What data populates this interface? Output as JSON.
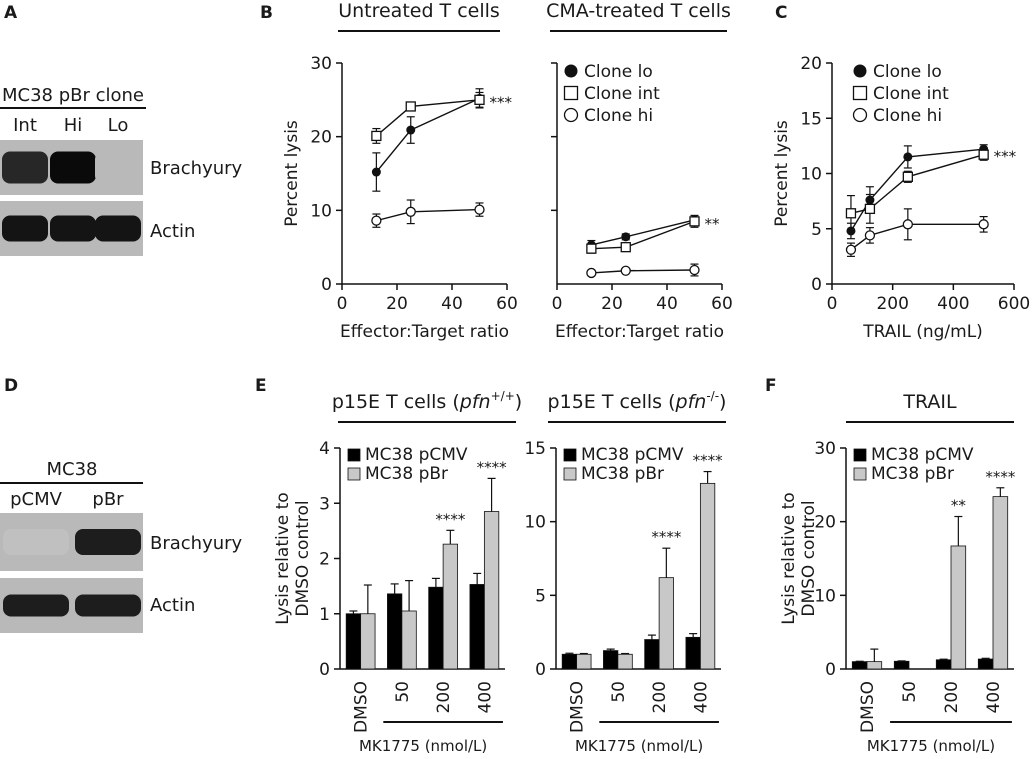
{
  "panels": {
    "A": {
      "letter": "A",
      "header": "MC38 pBr clone",
      "lanes": [
        "Int",
        "Hi",
        "Lo"
      ],
      "band_labels": [
        "Brachyury",
        "Actin"
      ],
      "brachyury_intensity": [
        0.85,
        1.0,
        0.08
      ],
      "actin_intensity": [
        0.95,
        0.95,
        0.95
      ]
    },
    "B": {
      "letter": "B"
    },
    "C": {
      "letter": "C"
    },
    "D": {
      "letter": "D",
      "header": "MC38",
      "lanes": [
        "pCMV",
        "pBr"
      ],
      "band_labels": [
        "Brachyury",
        "Actin"
      ],
      "brachyury_intensity": [
        0.04,
        0.9
      ],
      "actin_intensity": [
        0.9,
        0.9
      ]
    },
    "E": {
      "letter": "E",
      "xlabel": "MK1775 (nmol/L)"
    },
    "F": {
      "letter": "F",
      "xlabel": "MK1775 (nmol/L)"
    }
  },
  "chart_data": [
    {
      "id": "B1",
      "type": "line",
      "title": "Untreated T cells",
      "xlabel": "Effector:Target ratio",
      "ylabel": "Percent lysis",
      "xlim": [
        0,
        60
      ],
      "ylim": [
        0,
        30
      ],
      "xticks": [
        0,
        20,
        40,
        60
      ],
      "yticks": [
        0,
        10,
        20,
        30
      ],
      "x": [
        12.5,
        25,
        50
      ],
      "series": [
        {
          "name": "Clone lo",
          "marker": "filled-circle",
          "values": [
            15.2,
            20.9,
            25.2
          ],
          "errors": [
            2.6,
            1.8,
            1.3
          ]
        },
        {
          "name": "Clone int",
          "marker": "open-square",
          "values": [
            20.1,
            24.1,
            25.0
          ],
          "errors": [
            1.0,
            0.5,
            1.0
          ]
        },
        {
          "name": "Clone hi",
          "marker": "open-circle",
          "values": [
            8.6,
            9.8,
            10.1
          ],
          "errors": [
            0.9,
            1.6,
            0.9
          ]
        }
      ],
      "annotations": [
        {
          "text": "***",
          "x": 50,
          "y": 25.2
        }
      ]
    },
    {
      "id": "B2",
      "type": "line",
      "title": "CMA-treated T cells",
      "xlabel": "Effector:Target ratio",
      "ylabel": "",
      "xlim": [
        0,
        60
      ],
      "ylim": [
        0,
        30
      ],
      "xticks": [
        0,
        20,
        40,
        60
      ],
      "x": [
        12.5,
        25,
        50
      ],
      "legend": [
        "Clone lo",
        "Clone int",
        "Clone hi"
      ],
      "series": [
        {
          "name": "Clone lo",
          "marker": "filled-circle",
          "values": [
            5.3,
            6.4,
            8.7
          ],
          "errors": [
            0.6,
            0.4,
            0.6
          ]
        },
        {
          "name": "Clone int",
          "marker": "open-square",
          "values": [
            4.8,
            5.0,
            8.5
          ],
          "errors": [
            0.6,
            0.5,
            0.8
          ]
        },
        {
          "name": "Clone hi",
          "marker": "open-circle",
          "values": [
            1.5,
            1.8,
            1.9
          ],
          "errors": [
            0.3,
            0.3,
            0.8
          ]
        }
      ],
      "annotations": [
        {
          "text": "**",
          "x": 50,
          "y": 8.7
        }
      ]
    },
    {
      "id": "C",
      "type": "line",
      "title": "",
      "xlabel": "TRAIL (ng/mL)",
      "ylabel": "Percent lysis",
      "xlim": [
        0,
        600
      ],
      "ylim": [
        0,
        20
      ],
      "xticks": [
        0,
        200,
        400,
        600
      ],
      "yticks": [
        0,
        5,
        10,
        15,
        20
      ],
      "x": [
        62.5,
        125,
        250,
        500
      ],
      "legend": [
        "Clone lo",
        "Clone int",
        "Clone hi"
      ],
      "series": [
        {
          "name": "Clone lo",
          "marker": "filled-circle",
          "values": [
            4.8,
            7.6,
            11.5,
            12.2
          ],
          "errors": [
            0.7,
            1.2,
            1.0,
            0.4
          ]
        },
        {
          "name": "Clone int",
          "marker": "open-square",
          "values": [
            6.4,
            6.8,
            9.7,
            11.7
          ],
          "errors": [
            1.6,
            1.3,
            0.5,
            0.5
          ]
        },
        {
          "name": "Clone hi",
          "marker": "open-circle",
          "values": [
            3.1,
            4.4,
            5.4,
            5.4
          ],
          "errors": [
            0.6,
            0.7,
            1.4,
            0.7
          ]
        }
      ],
      "annotations": [
        {
          "text": "***",
          "x": 500,
          "y": 11.9
        }
      ]
    },
    {
      "id": "E1",
      "type": "bar",
      "title": "p15E T cells (pfn+/+)",
      "title_parts": {
        "prefix": "p15E T cells (",
        "italic": "pfn",
        "sup": "+/+",
        "suffix": ")"
      },
      "ylabel_lines": [
        "Lysis relative to",
        "DMSO control"
      ],
      "categories": [
        "DMSO",
        "50",
        "200",
        "400"
      ],
      "ylim": [
        0,
        4
      ],
      "yticks": [
        0,
        1,
        2,
        3,
        4
      ],
      "series": [
        {
          "name": "MC38 pCMV",
          "color": "#000000",
          "values": [
            1.0,
            1.36,
            1.48,
            1.53
          ],
          "errors": [
            0.05,
            0.18,
            0.16,
            0.2
          ]
        },
        {
          "name": "MC38 pBr",
          "color": "#c8c8c8",
          "values": [
            1.0,
            1.05,
            2.26,
            2.85
          ],
          "errors": [
            0.52,
            0.55,
            0.25,
            0.6
          ]
        }
      ],
      "annotations": [
        {
          "text": "****",
          "category": "200"
        },
        {
          "text": "****",
          "category": "400"
        }
      ]
    },
    {
      "id": "E2",
      "type": "bar",
      "title": "p15E T cells (pfn-/-)",
      "title_parts": {
        "prefix": "p15E T cells (",
        "italic": "pfn",
        "sup": "-/-",
        "suffix": ")"
      },
      "categories": [
        "DMSO",
        "50",
        "200",
        "400"
      ],
      "ylim": [
        0,
        15
      ],
      "yticks": [
        0,
        5,
        10,
        15
      ],
      "series": [
        {
          "name": "MC38 pCMV",
          "color": "#000000",
          "values": [
            1.0,
            1.25,
            2.0,
            2.15
          ],
          "errors": [
            0.07,
            0.1,
            0.3,
            0.25
          ]
        },
        {
          "name": "MC38 pBr",
          "color": "#c8c8c8",
          "values": [
            1.0,
            1.0,
            6.2,
            12.6
          ],
          "errors": [
            0.05,
            0.05,
            2.0,
            0.8
          ]
        }
      ],
      "annotations": [
        {
          "text": "****",
          "category": "200"
        },
        {
          "text": "****",
          "category": "400"
        }
      ]
    },
    {
      "id": "F",
      "type": "bar",
      "title": "TRAIL",
      "ylabel_lines": [
        "Lysis relative to",
        "DMSO control"
      ],
      "categories": [
        "DMSO",
        "50",
        "200",
        "400"
      ],
      "ylim": [
        0,
        30
      ],
      "yticks": [
        0,
        10,
        20,
        30
      ],
      "series": [
        {
          "name": "MC38 pCMV",
          "color": "#000000",
          "values": [
            1.0,
            1.05,
            1.25,
            1.35
          ],
          "errors": [
            0.05,
            0.05,
            0.08,
            0.1
          ]
        },
        {
          "name": "MC38 pBr",
          "color": "#c8c8c8",
          "values": [
            1.0,
            0.0,
            16.7,
            23.4
          ],
          "errors": [
            1.7,
            0.0,
            4.0,
            1.2
          ]
        }
      ],
      "annotations": [
        {
          "text": "**",
          "category": "200"
        },
        {
          "text": "****",
          "category": "400"
        }
      ]
    }
  ]
}
